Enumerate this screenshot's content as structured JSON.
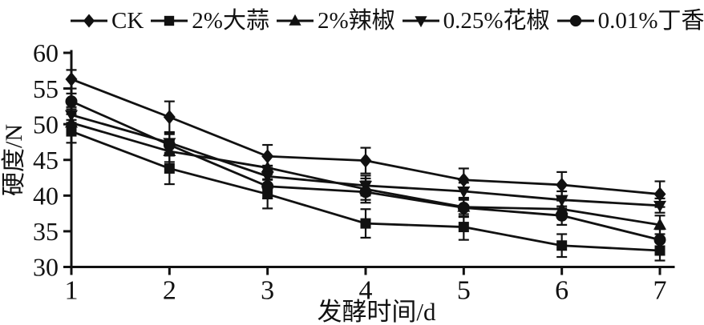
{
  "figure": {
    "background": "#ffffff",
    "ink_color": "#111111"
  },
  "chart_data": {
    "type": "line",
    "title": "",
    "xlabel": "发酵时间/d",
    "ylabel": "硬度/N",
    "x": [
      1,
      2,
      3,
      4,
      5,
      6,
      7
    ],
    "xlim": [
      1,
      7
    ],
    "ylim": [
      30,
      60
    ],
    "x_ticks": [
      1,
      2,
      3,
      4,
      5,
      6,
      7
    ],
    "y_ticks": [
      30,
      35,
      40,
      45,
      50,
      55,
      60
    ],
    "grid": false,
    "legend_position": "top",
    "error_bars": true,
    "line_color": "#111111",
    "marker_color": "#111111",
    "series": [
      {
        "name": "CK",
        "marker": "diamond",
        "values": [
          56.3,
          51.0,
          45.5,
          44.9,
          42.2,
          41.5,
          40.2
        ],
        "errors": [
          1.3,
          2.2,
          1.6,
          1.8,
          1.6,
          1.8,
          1.8
        ]
      },
      {
        "name": "2%大蒜",
        "marker": "square",
        "values": [
          49.0,
          43.8,
          40.2,
          36.1,
          35.6,
          33.0,
          32.3
        ],
        "errors": [
          1.6,
          2.2,
          2.0,
          2.0,
          1.8,
          1.6,
          1.4
        ]
      },
      {
        "name": "2%辣椒",
        "marker": "triangle-up",
        "values": [
          50.2,
          46.2,
          43.9,
          40.9,
          38.4,
          38.1,
          35.9
        ],
        "errors": [
          1.2,
          1.5,
          1.6,
          1.5,
          1.3,
          1.2,
          1.3
        ]
      },
      {
        "name": "0.25%花椒",
        "marker": "triangle-down",
        "values": [
          51.3,
          47.4,
          42.7,
          41.4,
          40.6,
          39.4,
          38.6
        ],
        "errors": [
          1.1,
          1.5,
          1.5,
          1.4,
          1.2,
          1.2,
          1.0
        ]
      },
      {
        "name": "0.01%丁香",
        "marker": "circle",
        "values": [
          53.2,
          47.1,
          41.3,
          40.5,
          38.3,
          37.2,
          33.8
        ],
        "errors": [
          1.1,
          1.5,
          1.7,
          1.5,
          1.3,
          1.3,
          1.5
        ]
      }
    ]
  }
}
